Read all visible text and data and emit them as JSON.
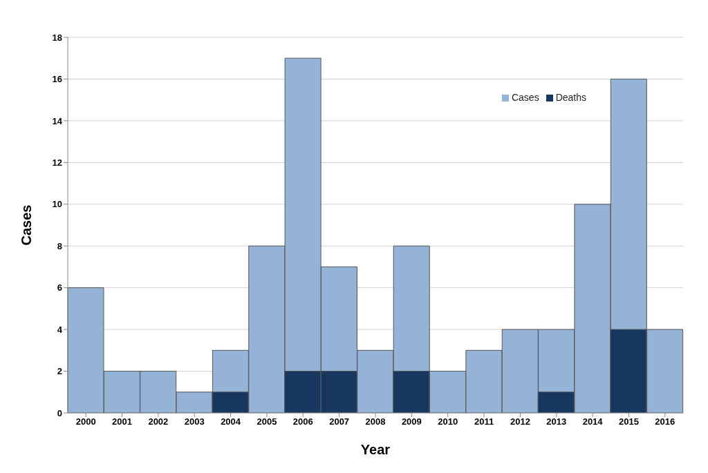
{
  "chart_data": {
    "type": "bar",
    "xlabel": "Year",
    "ylabel": "Cases",
    "categories": [
      "2000",
      "2001",
      "2002",
      "2003",
      "2004",
      "2005",
      "2006",
      "2007",
      "2008",
      "2009",
      "2010",
      "2011",
      "2012",
      "2013",
      "2014",
      "2015",
      "2016"
    ],
    "series": [
      {
        "name": "Cases",
        "color": "#95b3d7",
        "values": [
          6,
          2,
          2,
          1,
          3,
          8,
          17,
          7,
          3,
          8,
          2,
          3,
          4,
          4,
          10,
          16,
          4
        ]
      },
      {
        "name": "Deaths",
        "color": "#17375e",
        "values": [
          0,
          0,
          0,
          0,
          1,
          0,
          2,
          2,
          0,
          2,
          0,
          0,
          0,
          1,
          0,
          4,
          0
        ]
      }
    ],
    "ylim": [
      0,
      18
    ],
    "yticks": [
      0,
      2,
      4,
      6,
      8,
      10,
      12,
      14,
      16,
      18
    ],
    "grid": "y",
    "legend": "top right"
  }
}
